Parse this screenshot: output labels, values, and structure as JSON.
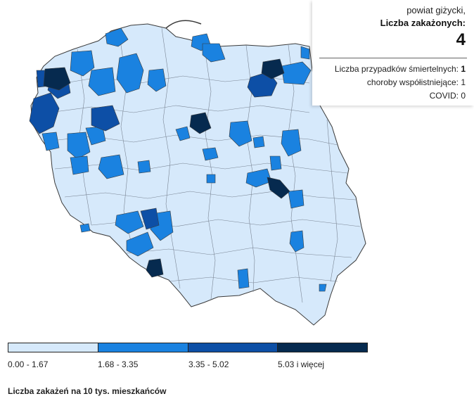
{
  "tooltip": {
    "place": "powiat giżycki,",
    "cases_label": "Liczba zakażonych:",
    "cases_value": "4",
    "deaths_label": "Liczba przypadków śmiertelnych:",
    "deaths_value": "1",
    "comorb_label": "choroby współistniejące:",
    "comorb_value": "1",
    "covid_label": "COVID:",
    "covid_value": "0"
  },
  "legend": {
    "title": "Liczba zakażeń na 10 tys. mieszkańców",
    "classes": [
      {
        "label": "0.00 - 1.67",
        "color": "#d6e9fb"
      },
      {
        "label": "1.68 - 3.35",
        "color": "#1a82e0"
      },
      {
        "label": "3.35 - 5.02",
        "color": "#0d4fa6"
      },
      {
        "label": "5.03 i więcej",
        "color": "#062a4f"
      }
    ]
  },
  "colors": {
    "border": "#3a3a3a",
    "sea": "#ffffff"
  },
  "icons": [
    "poland-map-icon"
  ]
}
